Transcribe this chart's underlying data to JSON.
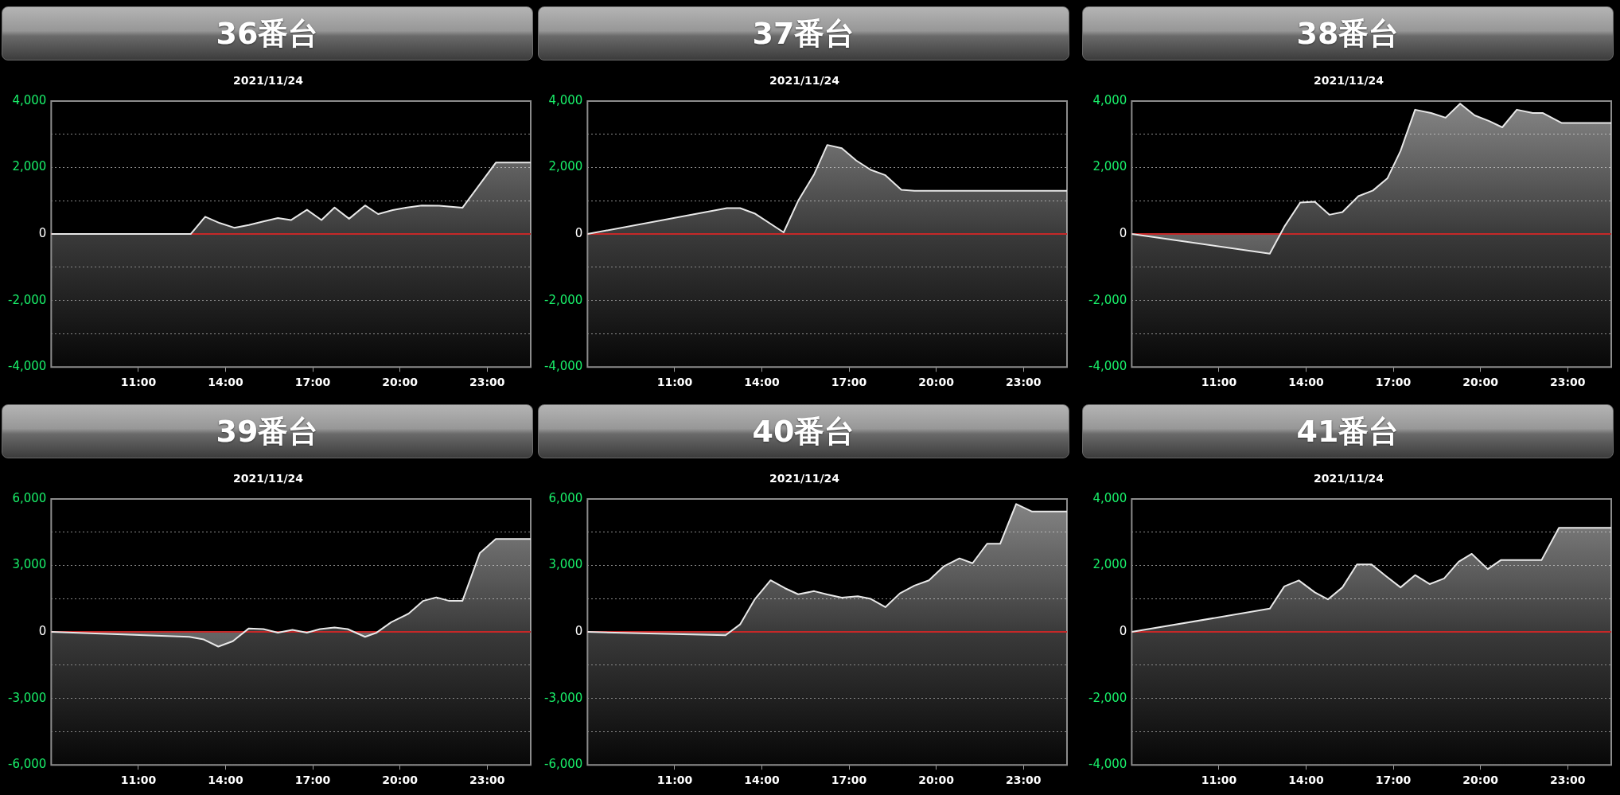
{
  "chart_data": [
    {
      "type": "area",
      "title": "36番台",
      "subtitle": "2021/11/24",
      "x": [
        8,
        12.8,
        13.3,
        13.8,
        14.3,
        14.8,
        15.3,
        15.8,
        16.25,
        16.8,
        17.3,
        17.75,
        18.25,
        18.8,
        19.25,
        19.75,
        20.25,
        20.75,
        21.35,
        22.15,
        23.3,
        24.5
      ],
      "values": [
        0,
        0,
        520,
        330,
        190,
        270,
        380,
        480,
        420,
        730,
        420,
        800,
        460,
        860,
        600,
        720,
        800,
        860,
        850,
        790,
        2150,
        2150
      ],
      "color": "#e8e8e8",
      "xlim": [
        8,
        24.5
      ],
      "xticks": [
        {
          "value": 11,
          "label": "11:00"
        },
        {
          "value": 14,
          "label": "14:00"
        },
        {
          "value": 17,
          "label": "17:00"
        },
        {
          "value": 20,
          "label": "20:00"
        },
        {
          "value": 23,
          "label": "23:00"
        }
      ],
      "ylim": [
        -4000,
        4000
      ],
      "yticks": [
        {
          "value": -4000,
          "label": "-4,000"
        },
        {
          "value": -3000,
          "label": null
        },
        {
          "value": -2000,
          "label": "-2,000"
        },
        {
          "value": -1000,
          "label": null
        },
        {
          "value": 0,
          "label": "0"
        },
        {
          "value": 1000,
          "label": null
        },
        {
          "value": 2000,
          "label": "2,000"
        },
        {
          "value": 3000,
          "label": null
        },
        {
          "value": 4000,
          "label": "4,000"
        }
      ],
      "grid": "y",
      "marker": "none",
      "ref_lines": [
        {
          "axis": "y",
          "value": 0,
          "color": "#c62828"
        }
      ]
    },
    {
      "type": "area",
      "title": "37番台",
      "subtitle": "2021/11/24",
      "x": [
        8,
        12.8,
        13.25,
        13.75,
        14.75,
        15.25,
        15.8,
        16.25,
        16.75,
        17.25,
        17.75,
        18.25,
        18.8,
        19.25,
        24.5
      ],
      "values": [
        0,
        780,
        780,
        620,
        50,
        1000,
        1800,
        2680,
        2580,
        2210,
        1930,
        1770,
        1330,
        1300,
        1300
      ],
      "color": "#e8e8e8",
      "xlim": [
        8,
        24.5
      ],
      "xticks": [
        {
          "value": 11,
          "label": "11:00"
        },
        {
          "value": 14,
          "label": "14:00"
        },
        {
          "value": 17,
          "label": "17:00"
        },
        {
          "value": 20,
          "label": "20:00"
        },
        {
          "value": 23,
          "label": "23:00"
        }
      ],
      "ylim": [
        -4000,
        4000
      ],
      "yticks": [
        {
          "value": -4000,
          "label": "-4,000"
        },
        {
          "value": -3000,
          "label": null
        },
        {
          "value": -2000,
          "label": "-2,000"
        },
        {
          "value": -1000,
          "label": null
        },
        {
          "value": 0,
          "label": "0"
        },
        {
          "value": 1000,
          "label": null
        },
        {
          "value": 2000,
          "label": "2,000"
        },
        {
          "value": 3000,
          "label": null
        },
        {
          "value": 4000,
          "label": "4,000"
        }
      ],
      "grid": "y",
      "marker": "none",
      "ref_lines": [
        {
          "axis": "y",
          "value": 0,
          "color": "#c62828"
        }
      ]
    },
    {
      "type": "area",
      "title": "38番台",
      "subtitle": "2021/11/24",
      "x": [
        8,
        12.75,
        13.25,
        13.8,
        14.3,
        14.8,
        15.25,
        15.8,
        16.3,
        16.8,
        17.25,
        17.75,
        18.3,
        18.8,
        19.3,
        19.8,
        20.3,
        20.75,
        21.25,
        21.8,
        22.15,
        22.8,
        24.5
      ],
      "values": [
        0,
        -590,
        220,
        950,
        970,
        580,
        660,
        1140,
        1310,
        1680,
        2500,
        3740,
        3640,
        3500,
        3920,
        3570,
        3400,
        3210,
        3740,
        3640,
        3640,
        3340,
        3340
      ],
      "color": "#e8e8e8",
      "xlim": [
        8,
        24.5
      ],
      "xticks": [
        {
          "value": 11,
          "label": "11:00"
        },
        {
          "value": 14,
          "label": "14:00"
        },
        {
          "value": 17,
          "label": "17:00"
        },
        {
          "value": 20,
          "label": "20:00"
        },
        {
          "value": 23,
          "label": "23:00"
        }
      ],
      "ylim": [
        -4000,
        4000
      ],
      "yticks": [
        {
          "value": -4000,
          "label": "-4,000"
        },
        {
          "value": -3000,
          "label": null
        },
        {
          "value": -2000,
          "label": "-2,000"
        },
        {
          "value": -1000,
          "label": null
        },
        {
          "value": 0,
          "label": "0"
        },
        {
          "value": 1000,
          "label": null
        },
        {
          "value": 2000,
          "label": "2,000"
        },
        {
          "value": 3000,
          "label": null
        },
        {
          "value": 4000,
          "label": "4,000"
        }
      ],
      "grid": "y",
      "marker": "none",
      "ref_lines": [
        {
          "axis": "y",
          "value": 0,
          "color": "#c62828"
        }
      ]
    },
    {
      "type": "area",
      "title": "39番台",
      "subtitle": "2021/11/24",
      "x": [
        8,
        12.75,
        13.25,
        13.75,
        14.25,
        14.8,
        15.3,
        15.8,
        16.3,
        16.8,
        17.25,
        17.75,
        18.2,
        18.8,
        19.2,
        19.7,
        20.3,
        20.8,
        21.25,
        21.7,
        22.15,
        22.75,
        23.3,
        24.5
      ],
      "values": [
        0,
        -220,
        -340,
        -660,
        -420,
        160,
        130,
        -30,
        90,
        -30,
        130,
        200,
        130,
        -220,
        -30,
        440,
        830,
        1400,
        1560,
        1400,
        1400,
        3560,
        4200,
        4200
      ],
      "color": "#e8e8e8",
      "xlim": [
        8,
        24.5
      ],
      "xticks": [
        {
          "value": 11,
          "label": "11:00"
        },
        {
          "value": 14,
          "label": "14:00"
        },
        {
          "value": 17,
          "label": "17:00"
        },
        {
          "value": 20,
          "label": "20:00"
        },
        {
          "value": 23,
          "label": "23:00"
        }
      ],
      "ylim": [
        -6000,
        6000
      ],
      "yticks": [
        {
          "value": -6000,
          "label": "-6,000"
        },
        {
          "value": -4500,
          "label": null
        },
        {
          "value": -3000,
          "label": "-3,000"
        },
        {
          "value": -1500,
          "label": null
        },
        {
          "value": 0,
          "label": "0"
        },
        {
          "value": 1500,
          "label": null
        },
        {
          "value": 3000,
          "label": "3,000"
        },
        {
          "value": 4500,
          "label": null
        },
        {
          "value": 6000,
          "label": "6,000"
        }
      ],
      "grid": "y",
      "marker": "none",
      "ref_lines": [
        {
          "axis": "y",
          "value": 0,
          "color": "#c62828"
        }
      ]
    },
    {
      "type": "area",
      "title": "40番台",
      "subtitle": "2021/11/24",
      "x": [
        8,
        12.75,
        13.25,
        13.75,
        14.3,
        14.8,
        15.25,
        15.8,
        16.25,
        16.75,
        17.3,
        17.75,
        18.25,
        18.75,
        19.25,
        19.75,
        20.25,
        20.8,
        21.25,
        21.75,
        22.2,
        22.75,
        23.3,
        24.5
      ],
      "values": [
        0,
        -150,
        340,
        1460,
        2330,
        1970,
        1700,
        1840,
        1690,
        1550,
        1610,
        1490,
        1120,
        1740,
        2090,
        2330,
        2950,
        3320,
        3100,
        3980,
        3980,
        5770,
        5430,
        5430
      ],
      "color": "#e8e8e8",
      "xlim": [
        8,
        24.5
      ],
      "xticks": [
        {
          "value": 11,
          "label": "11:00"
        },
        {
          "value": 14,
          "label": "14:00"
        },
        {
          "value": 17,
          "label": "17:00"
        },
        {
          "value": 20,
          "label": "20:00"
        },
        {
          "value": 23,
          "label": "23:00"
        }
      ],
      "ylim": [
        -6000,
        6000
      ],
      "yticks": [
        {
          "value": -6000,
          "label": "-6,000"
        },
        {
          "value": -4500,
          "label": null
        },
        {
          "value": -3000,
          "label": "-3,000"
        },
        {
          "value": -1500,
          "label": null
        },
        {
          "value": 0,
          "label": "0"
        },
        {
          "value": 1500,
          "label": null
        },
        {
          "value": 3000,
          "label": "3,000"
        },
        {
          "value": 4500,
          "label": null
        },
        {
          "value": 6000,
          "label": "6,000"
        }
      ],
      "grid": "y",
      "marker": "none",
      "ref_lines": [
        {
          "axis": "y",
          "value": 0,
          "color": "#c62828"
        }
      ]
    },
    {
      "type": "area",
      "title": "41番台",
      "subtitle": "2021/11/24",
      "x": [
        8,
        12.75,
        13.25,
        13.75,
        14.3,
        14.75,
        15.25,
        15.75,
        16.25,
        16.75,
        17.25,
        17.75,
        18.25,
        18.75,
        19.25,
        19.7,
        20.25,
        20.7,
        21.2,
        22.1,
        22.7,
        24.5
      ],
      "values": [
        0,
        700,
        1370,
        1550,
        1190,
        980,
        1340,
        2030,
        2030,
        1680,
        1340,
        1710,
        1440,
        1610,
        2110,
        2350,
        1890,
        2160,
        2160,
        2160,
        3130,
        3130
      ],
      "color": "#e8e8e8",
      "xlim": [
        8,
        24.5
      ],
      "xticks": [
        {
          "value": 11,
          "label": "11:00"
        },
        {
          "value": 14,
          "label": "14:00"
        },
        {
          "value": 17,
          "label": "17:00"
        },
        {
          "value": 20,
          "label": "20:00"
        },
        {
          "value": 23,
          "label": "23:00"
        }
      ],
      "ylim": [
        -4000,
        4000
      ],
      "yticks": [
        {
          "value": -4000,
          "label": "-4,000"
        },
        {
          "value": -3000,
          "label": null
        },
        {
          "value": -2000,
          "label": "-2,000"
        },
        {
          "value": -1000,
          "label": null
        },
        {
          "value": 0,
          "label": "0"
        },
        {
          "value": 1000,
          "label": null
        },
        {
          "value": 2000,
          "label": "2,000"
        },
        {
          "value": 3000,
          "label": null
        },
        {
          "value": 4000,
          "label": "4,000"
        }
      ],
      "grid": "y",
      "marker": "none",
      "ref_lines": [
        {
          "axis": "y",
          "value": 0,
          "color": "#c62828"
        }
      ]
    }
  ]
}
